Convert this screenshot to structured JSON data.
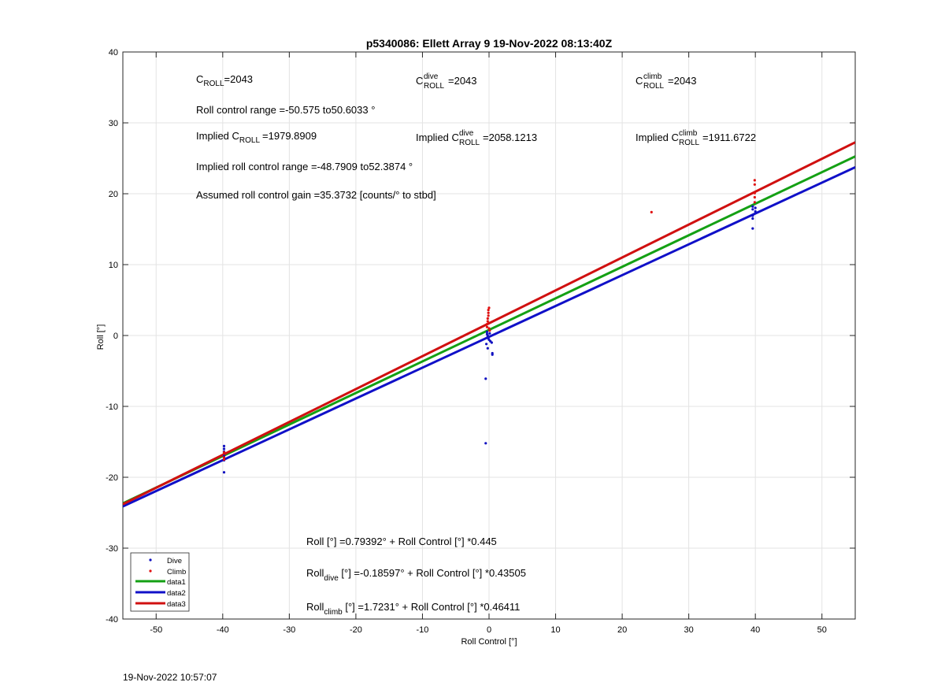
{
  "chart_data": {
    "type": "scatter",
    "title": "p5340086: Ellett Array 9 19-Nov-2022 08:13:40Z",
    "xlabel": "Roll Control [°]",
    "ylabel": "Roll [°]",
    "xlim": [
      -55,
      55
    ],
    "ylim": [
      -40,
      40
    ],
    "xticks": [
      -50,
      -40,
      -30,
      -20,
      -10,
      0,
      10,
      20,
      30,
      40,
      50
    ],
    "yticks": [
      -40,
      -30,
      -20,
      -10,
      0,
      10,
      20,
      30,
      40
    ],
    "grid": true,
    "legend_position": "bottom-left",
    "series": [
      {
        "name": "Dive",
        "kind": "points",
        "color": "#1010c0",
        "points": [
          [
            -39.8,
            -15.6
          ],
          [
            -39.8,
            -16.0
          ],
          [
            -39.8,
            -16.4
          ],
          [
            -39.8,
            -17.0
          ],
          [
            -39.8,
            -17.6
          ],
          [
            -39.8,
            -19.3
          ],
          [
            -0.3,
            0.5
          ],
          [
            -0.3,
            0.2
          ],
          [
            -0.2,
            0.0
          ],
          [
            -0.2,
            -0.2
          ],
          [
            -0.1,
            -0.4
          ],
          [
            0.0,
            -0.6
          ],
          [
            0.1,
            0.3
          ],
          [
            0.2,
            -0.8
          ],
          [
            -0.4,
            -1.2
          ],
          [
            -0.2,
            -1.8
          ],
          [
            0.4,
            -1.0
          ],
          [
            0.5,
            -2.5
          ],
          [
            0.5,
            -2.7
          ],
          [
            -0.5,
            -6.1
          ],
          [
            -0.5,
            -15.2
          ],
          [
            39.6,
            18.2
          ],
          [
            39.6,
            17.8
          ],
          [
            39.6,
            16.9
          ],
          [
            39.6,
            15.1
          ],
          [
            40.0,
            17.5
          ],
          [
            40.0,
            18.0
          ],
          [
            39.6,
            16.5
          ]
        ]
      },
      {
        "name": "Climb",
        "kind": "points",
        "color": "#e01010",
        "points": [
          [
            -39.8,
            -16.5
          ],
          [
            -39.8,
            -17.2
          ],
          [
            -39.8,
            -17.5
          ],
          [
            -0.3,
            1.2
          ],
          [
            -0.3,
            1.6
          ],
          [
            -0.2,
            2.0
          ],
          [
            -0.2,
            2.4
          ],
          [
            -0.1,
            2.8
          ],
          [
            -0.1,
            3.2
          ],
          [
            -0.1,
            3.6
          ],
          [
            0.0,
            3.9
          ],
          [
            0.0,
            1.0
          ],
          [
            0.1,
            0.7
          ],
          [
            24.4,
            17.4
          ],
          [
            39.9,
            18.8
          ],
          [
            39.9,
            19.5
          ],
          [
            39.9,
            20.1
          ],
          [
            39.9,
            21.3
          ],
          [
            39.9,
            21.9
          ]
        ]
      },
      {
        "name": "data1",
        "kind": "line",
        "color": "#14a014",
        "intercept": 0.79392,
        "slope": 0.445
      },
      {
        "name": "data2",
        "kind": "line",
        "color": "#1010c8",
        "intercept": -0.18597,
        "slope": 0.43505
      },
      {
        "name": "data3",
        "kind": "line",
        "color": "#d01010",
        "intercept": 1.7231,
        "slope": 0.46411
      }
    ],
    "annotations": {
      "c_roll": {
        "main": "C",
        "sub": "ROLL",
        "value": "=2043"
      },
      "c_roll_dive": {
        "main": "C",
        "sup": "dive",
        "sub": "ROLL",
        "value": "=2043"
      },
      "c_roll_climb": {
        "main": "C",
        "sup": "climb",
        "sub": "ROLL",
        "value": "=2043"
      },
      "range": "Roll control range =-50.575 to50.6033 °",
      "implied_c_roll": {
        "prefix": "Implied C",
        "sub": "ROLL",
        "value": "=1979.8909"
      },
      "implied_c_roll_dive": {
        "prefix": "Implied C",
        "sup": "dive",
        "sub": "ROLL",
        "value": "=2058.1213"
      },
      "implied_c_roll_climb": {
        "prefix": "Implied C",
        "sup": "climb",
        "sub": "ROLL",
        "value": "=1911.6722"
      },
      "implied_range": "Implied roll control range =-48.7909 to52.3874 °",
      "gain": "Assumed roll control gain =35.3732 [counts/° to stbd]",
      "fit_all": "Roll [°] =0.79392° + Roll Control [°] *0.445",
      "fit_dive": {
        "main": "Roll",
        "sub": "dive",
        "rest": " [°] =-0.18597° + Roll Control [°] *0.43505"
      },
      "fit_climb": {
        "main": "Roll",
        "sub": "climb",
        "rest": " [°] =1.7231° + Roll Control [°] *0.46411"
      }
    }
  },
  "footer_timestamp": "19-Nov-2022 10:57:07"
}
